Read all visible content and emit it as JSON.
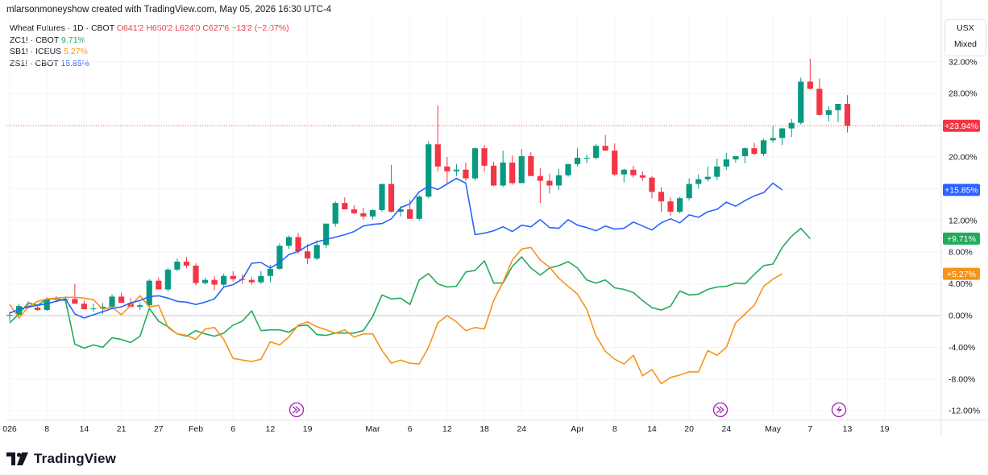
{
  "header": {
    "text": "mlarsonmoneyshow created with TradingView.com, May 05, 2026 16:30 UTC-4"
  },
  "legend": {
    "main": {
      "symbol": "Wheat Futures · 1D · CBOT",
      "o": "O641'2",
      "h": "H650'2",
      "l": "L624'0",
      "c": "C627'6",
      "chg": "−13'2 (−2.07%)"
    },
    "compare": [
      {
        "symbol": "ZC1! · CBOT",
        "value": "9.71%",
        "color": "#22ab5b"
      },
      {
        "symbol": "SB1! · ICEUS",
        "value": "5.27%",
        "color": "#f7931a"
      },
      {
        "symbol": "ZS1! · CBOT",
        "value": "15.85%",
        "color": "#2962ff"
      }
    ]
  },
  "topright": {
    "currency": "USX",
    "mode": "Mixed"
  },
  "footer": {
    "brand": "TradingView"
  },
  "colors": {
    "up": "#089981",
    "down": "#f23645",
    "wheat": "#f23645",
    "corn": "#22ab5b",
    "sugar": "#f7931a",
    "soy": "#2962ff",
    "grid": "#f0f3fa",
    "axis": "#131722"
  },
  "chart_data": {
    "type": "line",
    "title": "Wheat Futures · 1D · CBOT",
    "y_unit": "percent change",
    "ylim": [
      -12,
      34
    ],
    "y_ticks": [
      "32.00%",
      "28.00%",
      "24.00%",
      "20.00%",
      "16.00%",
      "12.00%",
      "8.00%",
      "4.00%",
      "0.00%",
      "-4.00%",
      "-8.00%",
      "-12.00%"
    ],
    "y_tick_values": [
      32,
      28,
      24,
      20,
      16,
      12,
      8,
      4,
      0,
      -4,
      -8,
      -12
    ],
    "x_tick_labels": [
      "026",
      "8",
      "14",
      "21",
      "27",
      "Feb",
      "6",
      "12",
      "19",
      "Mar",
      "6",
      "12",
      "18",
      "24",
      "Apr",
      "8",
      "14",
      "20",
      "24",
      "May",
      "7",
      "13",
      "19"
    ],
    "x_tick_index": [
      0,
      4,
      8,
      12,
      16,
      20,
      24,
      28,
      32,
      39,
      43,
      47,
      51,
      55,
      61,
      65,
      69,
      73,
      77,
      82,
      86,
      90,
      94
    ],
    "price_labels": [
      {
        "text": "+23.94%",
        "value": 23.94,
        "color": "#f23645"
      },
      {
        "text": "+15.85%",
        "value": 15.85,
        "color": "#2962ff"
      },
      {
        "text": "+9.71%",
        "value": 9.71,
        "color": "#22ab5b"
      },
      {
        "text": "+5.27%",
        "value": 5.27,
        "color": "#f7931a"
      }
    ],
    "ref_line": 23.94,
    "wheat_candles": [
      [
        0.0,
        0.5,
        -0.7,
        0.1
      ],
      [
        0.1,
        1.5,
        0.0,
        1.2
      ],
      [
        1.2,
        1.8,
        0.9,
        1.0
      ],
      [
        1.0,
        1.4,
        0.6,
        0.7
      ],
      [
        0.7,
        2.3,
        0.6,
        2.1
      ],
      [
        2.1,
        2.5,
        1.8,
        2.0
      ],
      [
        2.0,
        2.4,
        1.6,
        2.1
      ],
      [
        2.1,
        4.0,
        1.5,
        1.5
      ],
      [
        1.5,
        1.9,
        1.0,
        0.8
      ],
      [
        0.8,
        1.5,
        0.5,
        0.9
      ],
      [
        0.9,
        1.6,
        0.2,
        1.1
      ],
      [
        1.1,
        2.7,
        0.8,
        2.4
      ],
      [
        2.4,
        2.9,
        1.9,
        1.6
      ],
      [
        1.6,
        2.2,
        1.2,
        1.1
      ],
      [
        1.1,
        1.6,
        0.7,
        1.3
      ],
      [
        1.3,
        4.6,
        1.1,
        4.4
      ],
      [
        4.4,
        4.8,
        3.9,
        3.3
      ],
      [
        3.3,
        6.0,
        3.0,
        5.8
      ],
      [
        5.8,
        7.2,
        5.6,
        6.8
      ],
      [
        6.8,
        7.4,
        6.0,
        6.3
      ],
      [
        6.3,
        6.6,
        3.8,
        4.1
      ],
      [
        4.1,
        4.8,
        3.9,
        4.5
      ],
      [
        4.5,
        5.0,
        3.2,
        3.9
      ],
      [
        3.9,
        5.3,
        3.7,
        5.0
      ],
      [
        5.0,
        5.6,
        4.3,
        4.6
      ],
      [
        4.6,
        5.2,
        4.0,
        4.5
      ],
      [
        4.5,
        4.9,
        3.9,
        4.2
      ],
      [
        4.2,
        5.6,
        4.0,
        5.0
      ],
      [
        5.0,
        6.4,
        4.2,
        5.9
      ],
      [
        5.9,
        9.1,
        5.8,
        8.8
      ],
      [
        8.8,
        10.1,
        8.4,
        9.9
      ],
      [
        9.9,
        10.4,
        7.8,
        8.1
      ],
      [
        8.1,
        9.0,
        6.5,
        7.2
      ],
      [
        7.2,
        9.5,
        7.0,
        8.9
      ],
      [
        8.9,
        11.4,
        8.5,
        11.6
      ],
      [
        11.6,
        14.4,
        11.2,
        14.2
      ],
      [
        14.2,
        14.9,
        13.5,
        13.4
      ],
      [
        13.4,
        13.9,
        12.8,
        12.9
      ],
      [
        12.9,
        13.6,
        12.1,
        12.5
      ],
      [
        12.5,
        13.4,
        12.1,
        13.3
      ],
      [
        13.3,
        16.5,
        13.1,
        16.6
      ],
      [
        16.6,
        19.0,
        13.0,
        13.1
      ],
      [
        13.1,
        13.8,
        12.5,
        13.4
      ],
      [
        13.4,
        14.6,
        12.7,
        12.2
      ],
      [
        12.2,
        15.2,
        12.0,
        15.0
      ],
      [
        15.0,
        22.0,
        14.8,
        21.6
      ],
      [
        21.6,
        26.5,
        18.2,
        18.8
      ],
      [
        18.8,
        20.0,
        16.5,
        18.2
      ],
      [
        18.2,
        19.1,
        17.6,
        18.4
      ],
      [
        18.4,
        19.3,
        17.0,
        17.3
      ],
      [
        17.3,
        21.2,
        17.0,
        21.1
      ],
      [
        21.1,
        21.5,
        18.2,
        18.9
      ],
      [
        18.9,
        19.4,
        16.3,
        16.4
      ],
      [
        16.4,
        20.8,
        16.2,
        19.3
      ],
      [
        19.3,
        20.2,
        16.5,
        16.7
      ],
      [
        16.7,
        21.0,
        18.5,
        20.1
      ],
      [
        20.1,
        20.6,
        17.7,
        17.6
      ],
      [
        17.6,
        18.6,
        14.2,
        17.0
      ],
      [
        17.0,
        17.9,
        15.4,
        16.4
      ],
      [
        16.4,
        18.5,
        15.8,
        17.7
      ],
      [
        17.7,
        19.2,
        17.5,
        19.1
      ],
      [
        19.1,
        21.1,
        18.8,
        19.9
      ],
      [
        19.9,
        20.3,
        19.2,
        19.9
      ],
      [
        19.9,
        21.6,
        19.7,
        21.4
      ],
      [
        21.4,
        22.8,
        20.8,
        20.8
      ],
      [
        20.8,
        21.7,
        17.6,
        17.8
      ],
      [
        17.8,
        18.5,
        16.8,
        18.4
      ],
      [
        18.4,
        18.9,
        17.4,
        17.7
      ],
      [
        17.7,
        18.2,
        17.0,
        17.4
      ],
      [
        17.4,
        17.6,
        14.8,
        15.6
      ],
      [
        15.6,
        16.2,
        13.1,
        14.4
      ],
      [
        14.4,
        14.9,
        12.6,
        13.1
      ],
      [
        13.1,
        15.0,
        12.9,
        14.8
      ],
      [
        14.8,
        17.3,
        14.5,
        16.6
      ],
      [
        16.6,
        17.8,
        16.0,
        17.2
      ],
      [
        17.2,
        18.8,
        16.9,
        17.5
      ],
      [
        17.5,
        19.8,
        17.1,
        18.8
      ],
      [
        18.8,
        20.5,
        18.4,
        19.7
      ],
      [
        19.7,
        20.1,
        19.3,
        20.1
      ],
      [
        20.1,
        21.2,
        19.2,
        21.1
      ],
      [
        21.1,
        21.8,
        20.2,
        20.4
      ],
      [
        20.4,
        22.3,
        20.1,
        22.1
      ],
      [
        22.1,
        23.9,
        21.8,
        22.4
      ],
      [
        22.4,
        23.7,
        21.5,
        23.6
      ],
      [
        23.6,
        24.8,
        22.5,
        24.3
      ],
      [
        24.3,
        30.0,
        24.1,
        29.5
      ],
      [
        29.5,
        32.4,
        28.5,
        28.6
      ],
      [
        28.6,
        29.9,
        25.2,
        25.3
      ],
      [
        25.3,
        26.4,
        24.5,
        25.9
      ],
      [
        25.9,
        26.7,
        24.4,
        26.7
      ],
      [
        26.7,
        27.8,
        23.1,
        23.94
      ]
    ],
    "series": [
      {
        "name": "ZC1! · CBOT",
        "color": "#22ab5b",
        "values": [
          -0.9,
          0.2,
          1.6,
          1.3,
          2.1,
          2.1,
          1.9,
          -3.6,
          -4.1,
          -3.7,
          -4.0,
          -2.8,
          -3.0,
          -3.4,
          -2.6,
          0.9,
          -0.7,
          -1.4,
          -2.3,
          -2.6,
          -1.9,
          -2.3,
          -2.6,
          -2.2,
          -1.2,
          -0.7,
          0.6,
          -1.9,
          -1.8,
          -1.8,
          -2.1,
          -1.3,
          -1.2,
          -2.4,
          -2.5,
          -2.2,
          -2.2,
          -2.2,
          -1.9,
          -0.1,
          2.6,
          2.1,
          2.2,
          1.4,
          4.5,
          5.3,
          4.0,
          3.6,
          3.7,
          5.5,
          5.7,
          6.9,
          4.1,
          4.1,
          6.2,
          7.4,
          6.0,
          5.1,
          6.0,
          6.3,
          6.8,
          6.0,
          4.5,
          4.1,
          4.5,
          3.5,
          3.3,
          2.9,
          1.9,
          1.0,
          0.7,
          1.2,
          3.1,
          2.6,
          2.7,
          3.3,
          3.6,
          3.7,
          4.1,
          4.0,
          5.2,
          6.3,
          6.5,
          8.6,
          10.0,
          11.0,
          9.71
        ]
      },
      {
        "name": "SB1! · ICEUS",
        "color": "#f7931a",
        "values": [
          1.4,
          -0.3,
          1.1,
          1.8,
          2.1,
          2.2,
          2.3,
          2.3,
          2.2,
          2.0,
          0.8,
          1.1,
          0.1,
          1.3,
          2.5,
          1.1,
          1.3,
          -1.5,
          -2.3,
          -2.5,
          -3.0,
          -1.7,
          -1.5,
          -3.0,
          -5.4,
          -5.6,
          -5.8,
          -5.5,
          -3.3,
          -3.7,
          -2.7,
          -1.2,
          -0.8,
          -1.4,
          -1.8,
          -2.2,
          -1.8,
          -2.7,
          -2.3,
          -2.3,
          -4.4,
          -6.0,
          -5.6,
          -6.0,
          -6.1,
          -4.0,
          -0.9,
          0.0,
          -0.8,
          -1.9,
          -1.5,
          -1.7,
          1.9,
          4.2,
          7.0,
          8.4,
          8.6,
          7.0,
          6.1,
          4.7,
          3.7,
          2.7,
          0.8,
          -2.6,
          -4.5,
          -5.5,
          -6.1,
          -5.0,
          -7.6,
          -6.8,
          -8.6,
          -7.8,
          -7.5,
          -7.1,
          -7.1,
          -4.4,
          -5.0,
          -4.0,
          -0.9,
          0.2,
          1.3,
          3.7,
          4.6,
          5.27
        ]
      },
      {
        "name": "ZS1! · CBOT",
        "color": "#2962ff",
        "values": [
          0.3,
          0.8,
          1.1,
          1.3,
          1.5,
          1.8,
          2.1,
          0.2,
          -0.3,
          0.1,
          0.5,
          0.9,
          1.1,
          1.6,
          1.9,
          2.4,
          2.5,
          2.2,
          1.8,
          1.7,
          1.4,
          1.7,
          2.1,
          3.6,
          3.9,
          4.6,
          6.6,
          6.7,
          6.0,
          6.7,
          7.7,
          8.1,
          8.8,
          9.3,
          9.6,
          9.9,
          10.2,
          10.6,
          11.3,
          11.5,
          11.6,
          12.2,
          13.6,
          14.1,
          15.6,
          16.3,
          15.9,
          16.6,
          17.3,
          16.7,
          10.2,
          10.4,
          10.7,
          11.2,
          10.6,
          11.4,
          11.2,
          12.1,
          11.1,
          11.0,
          12.1,
          11.4,
          11.1,
          10.7,
          11.3,
          10.9,
          11.0,
          11.8,
          11.3,
          10.8,
          11.7,
          12.2,
          11.7,
          12.7,
          12.4,
          13.1,
          13.4,
          14.3,
          13.8,
          14.5,
          15.1,
          15.5,
          16.7,
          15.85
        ]
      }
    ]
  }
}
